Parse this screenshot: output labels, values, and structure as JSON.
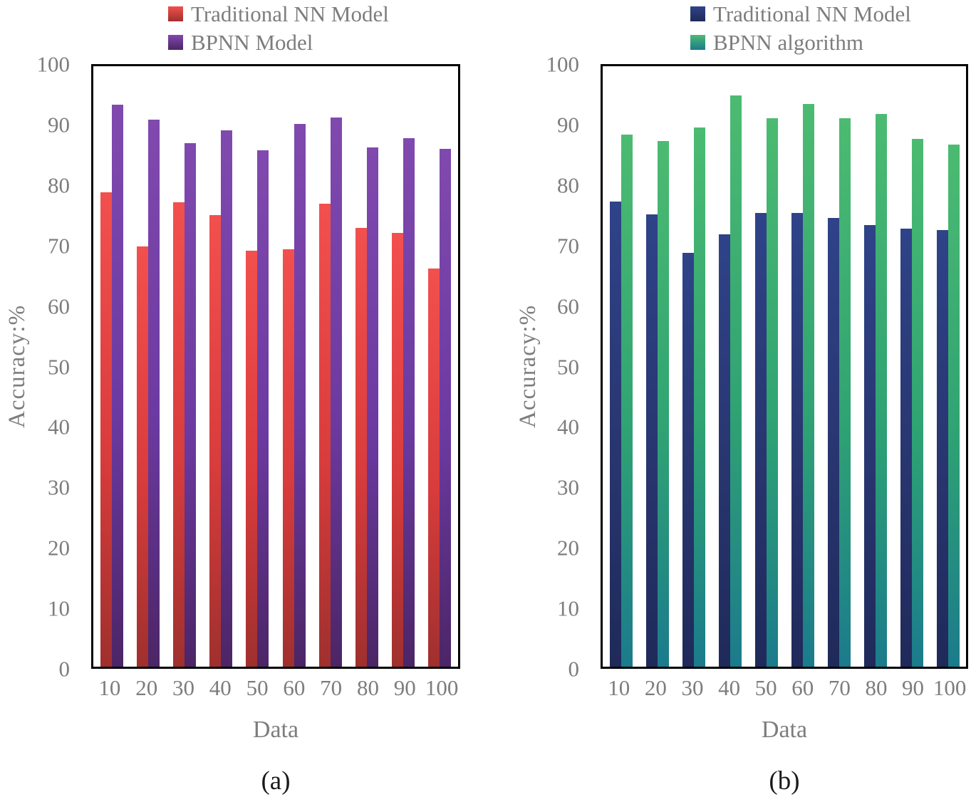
{
  "figure": {
    "background": "#ffffff",
    "axis_text_color": "#7d7d7d",
    "border_color": "#000000",
    "caption_color": "#1a1a1a"
  },
  "chart_data": [
    {
      "type": "bar",
      "panel_label": "(a)",
      "xlabel": "Data",
      "ylabel": "Accuracy:%",
      "ylim": [
        0,
        100
      ],
      "yticks": [
        0,
        10,
        20,
        30,
        40,
        50,
        60,
        70,
        80,
        90,
        100
      ],
      "grid": false,
      "legend_position": "top",
      "categories": [
        "10",
        "20",
        "30",
        "40",
        "50",
        "60",
        "70",
        "80",
        "90",
        "100"
      ],
      "series": [
        {
          "name": "Traditional NN Model",
          "values": [
            79.0,
            70.0,
            77.3,
            75.2,
            69.3,
            69.5,
            77.1,
            73.1,
            72.3,
            66.3
          ],
          "gradient": [
            "#f2504e",
            "#d93c3c",
            "#9f302e"
          ]
        },
        {
          "name": "BPNN Model",
          "values": [
            93.6,
            91.1,
            87.2,
            89.3,
            86.0,
            90.4,
            91.5,
            86.5,
            88.0,
            86.3
          ],
          "gradient": [
            "#8049ae",
            "#6b3aa1",
            "#4c2566"
          ]
        }
      ]
    },
    {
      "type": "bar",
      "panel_label": "(b)",
      "xlabel": "Data",
      "ylabel": "Accuracy:%",
      "ylim": [
        0,
        100
      ],
      "yticks": [
        0,
        10,
        20,
        30,
        40,
        50,
        60,
        70,
        80,
        90,
        100
      ],
      "grid": false,
      "legend_position": "top",
      "categories": [
        "10",
        "20",
        "30",
        "40",
        "50",
        "60",
        "70",
        "80",
        "90",
        "100"
      ],
      "series": [
        {
          "name": "Traditional NN Model",
          "values": [
            77.5,
            75.3,
            68.9,
            72.0,
            75.6,
            75.6,
            74.7,
            73.5,
            72.9,
            72.7
          ],
          "gradient": [
            "#2f4389",
            "#28356f",
            "#1f2a5a"
          ]
        },
        {
          "name": "BPNN algorithm",
          "values": [
            88.6,
            87.5,
            89.8,
            95.1,
            91.3,
            93.7,
            91.3,
            92.1,
            87.9,
            86.9
          ],
          "gradient": [
            "#4cbb71",
            "#2fa373",
            "#1b7b8c"
          ]
        }
      ]
    }
  ]
}
